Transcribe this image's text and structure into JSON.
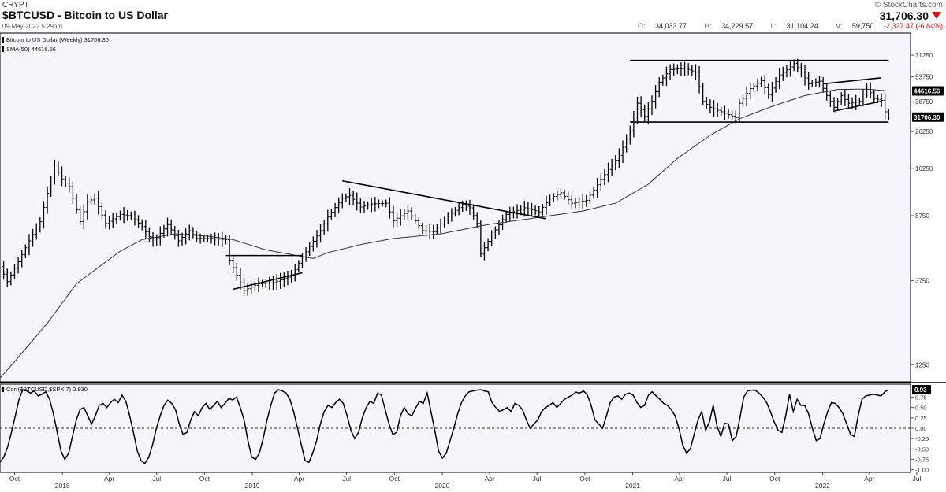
{
  "header": {
    "exchange": "CRYPT",
    "title": "$BTCUSD - Bitcoin to US Dollar",
    "date": "09-May-2022 5:29pm",
    "brand": "© StockCharts.com",
    "last": "31,706.30",
    "ohlc": {
      "open_label": "O:",
      "open": "34,033.77",
      "high_label": "H:",
      "high": "34,229.57",
      "low_label": "L:",
      "low": "31,104.24",
      "vol_label": "V:",
      "vol": "59,750",
      "change": "-2,327.47 (-6.84%)"
    }
  },
  "colors": {
    "background": "#f4f6fc",
    "price": "#000000",
    "change_down": "#dd1111"
  },
  "chart_data": [
    {
      "type": "ohlc",
      "title": "Bitcoin to US Dollar (Weekly) 31706.30",
      "sma_label": "SMA(50) 44616.56",
      "scale": "log",
      "y_ticks": [
        1250,
        3750,
        8750,
        16250,
        26250,
        38750,
        53750,
        71250
      ],
      "y_tick_labels": [
        "1250",
        "3750",
        "8750",
        "16250",
        "26250",
        "38750",
        "53750",
        "71250"
      ],
      "last_price_label": "31706.30",
      "sma_value_label": "44616.56",
      "x_ticks": [
        "2017-10-01",
        "2018-01-01",
        "2018-04-01",
        "2018-07-01",
        "2018-10-01",
        "2019-01-01",
        "2019-04-01",
        "2019-07-01",
        "2019-10-01",
        "2020-01-01",
        "2020-04-01",
        "2020-07-01",
        "2020-10-01",
        "2021-01-01",
        "2021-04-01",
        "2021-07-01",
        "2021-10-01",
        "2022-01-01",
        "2022-04-01",
        "2022-07-01"
      ],
      "x_tick_labels": [
        "Oct",
        "2018",
        "Apr",
        "Jul",
        "Oct",
        "2019",
        "Apr",
        "Jul",
        "Oct",
        "2020",
        "Apr",
        "Jul",
        "Oct",
        "2021",
        "Apr",
        "Jul",
        "Oct",
        "2022",
        "Apr",
        "Jul"
      ],
      "year_labels": [
        "2018",
        "2019",
        "2020",
        "2021",
        "2022"
      ],
      "price_anchors": [
        [
          "2017-09-03",
          4500
        ],
        [
          "2017-09-17",
          3700
        ],
        [
          "2017-10-08",
          4800
        ],
        [
          "2017-10-29",
          6300
        ],
        [
          "2017-11-19",
          8100
        ],
        [
          "2017-12-17",
          17000
        ],
        [
          "2017-12-31",
          14000
        ],
        [
          "2018-01-14",
          12800
        ],
        [
          "2018-02-04",
          8100
        ],
        [
          "2018-02-18",
          10500
        ],
        [
          "2018-03-04",
          11000
        ],
        [
          "2018-03-25",
          7900
        ],
        [
          "2018-04-22",
          8900
        ],
        [
          "2018-05-13",
          8700
        ],
        [
          "2018-06-03",
          7600
        ],
        [
          "2018-06-24",
          6200
        ],
        [
          "2018-07-22",
          7800
        ],
        [
          "2018-08-12",
          6300
        ],
        [
          "2018-09-02",
          7200
        ],
        [
          "2018-09-16",
          6500
        ],
        [
          "2018-10-14",
          6500
        ],
        [
          "2018-11-11",
          6400
        ],
        [
          "2018-11-18",
          4900
        ],
        [
          "2018-12-16",
          3300
        ],
        [
          "2019-01-13",
          3600
        ],
        [
          "2019-02-10",
          3650
        ],
        [
          "2019-03-17",
          4000
        ],
        [
          "2019-04-07",
          5100
        ],
        [
          "2019-05-12",
          7200
        ],
        [
          "2019-05-26",
          8600
        ],
        [
          "2019-06-23",
          11000
        ],
        [
          "2019-07-07",
          11400
        ],
        [
          "2019-07-28",
          9800
        ],
        [
          "2019-08-18",
          10200
        ],
        [
          "2019-09-15",
          10300
        ],
        [
          "2019-09-29",
          8200
        ],
        [
          "2019-10-27",
          9300
        ],
        [
          "2019-11-24",
          7200
        ],
        [
          "2019-12-15",
          7100
        ],
        [
          "2020-01-12",
          8700
        ],
        [
          "2020-02-09",
          10100
        ],
        [
          "2020-02-23",
          9700
        ],
        [
          "2020-03-08",
          7900
        ],
        [
          "2020-03-15",
          5300
        ],
        [
          "2020-04-05",
          6800
        ],
        [
          "2020-05-03",
          8900
        ],
        [
          "2020-06-07",
          9700
        ],
        [
          "2020-07-05",
          9200
        ],
        [
          "2020-07-26",
          11000
        ],
        [
          "2020-08-16",
          11800
        ],
        [
          "2020-09-06",
          10300
        ],
        [
          "2020-10-04",
          10700
        ],
        [
          "2020-10-25",
          13100
        ],
        [
          "2020-11-15",
          16000
        ],
        [
          "2020-12-06",
          19200
        ],
        [
          "2020-12-27",
          26500
        ],
        [
          "2021-01-10",
          38000
        ],
        [
          "2021-01-24",
          32000
        ],
        [
          "2021-02-07",
          39000
        ],
        [
          "2021-02-21",
          50000
        ],
        [
          "2021-03-14",
          59000
        ],
        [
          "2021-04-11",
          60000
        ],
        [
          "2021-05-02",
          57000
        ],
        [
          "2021-05-16",
          39000
        ],
        [
          "2021-05-30",
          36000
        ],
        [
          "2021-06-20",
          34000
        ],
        [
          "2021-07-18",
          31500
        ],
        [
          "2021-07-25",
          38000
        ],
        [
          "2021-08-15",
          46000
        ],
        [
          "2021-09-05",
          51000
        ],
        [
          "2021-09-19",
          42500
        ],
        [
          "2021-10-10",
          55000
        ],
        [
          "2021-10-31",
          61000
        ],
        [
          "2021-11-07",
          64000
        ],
        [
          "2021-11-21",
          57000
        ],
        [
          "2021-12-05",
          49000
        ],
        [
          "2021-12-26",
          50700
        ],
        [
          "2022-01-09",
          42000
        ],
        [
          "2022-01-23",
          36000
        ],
        [
          "2022-02-06",
          42000
        ],
        [
          "2022-02-20",
          38000
        ],
        [
          "2022-03-13",
          39000
        ],
        [
          "2022-03-27",
          47000
        ],
        [
          "2022-04-10",
          40400
        ],
        [
          "2022-04-24",
          39500
        ],
        [
          "2022-05-01",
          34000
        ],
        [
          "2022-05-08",
          31706
        ]
      ],
      "sma_anchors": [
        [
          "2017-09-03",
          1050
        ],
        [
          "2017-10-01",
          1300
        ],
        [
          "2017-12-03",
          2150
        ],
        [
          "2018-01-28",
          3600
        ],
        [
          "2018-04-22",
          5500
        ],
        [
          "2018-06-03",
          6400
        ],
        [
          "2018-08-05",
          6900
        ],
        [
          "2018-10-07",
          6700
        ],
        [
          "2018-11-25",
          6400
        ],
        [
          "2019-01-27",
          5600
        ],
        [
          "2019-04-28",
          5000
        ],
        [
          "2019-05-26",
          5400
        ],
        [
          "2019-07-28",
          6000
        ],
        [
          "2019-09-29",
          6500
        ],
        [
          "2019-12-29",
          6900
        ],
        [
          "2020-03-29",
          7800
        ],
        [
          "2020-06-28",
          8500
        ],
        [
          "2020-09-27",
          9300
        ],
        [
          "2020-11-29",
          10300
        ],
        [
          "2021-01-31",
          13200
        ],
        [
          "2021-03-28",
          18500
        ],
        [
          "2021-05-30",
          25000
        ],
        [
          "2021-07-25",
          31000
        ],
        [
          "2021-09-26",
          36500
        ],
        [
          "2021-11-28",
          42000
        ],
        [
          "2022-01-30",
          45500
        ],
        [
          "2022-03-27",
          45700
        ],
        [
          "2022-05-08",
          44600
        ]
      ],
      "trendlines": [
        [
          [
            "2018-11-11",
            5200
          ],
          [
            "2019-04-07",
            5200
          ]
        ],
        [
          [
            "2018-11-25",
            3350
          ],
          [
            "2019-04-07",
            4150
          ]
        ],
        [
          [
            "2019-06-23",
            13800
          ],
          [
            "2020-07-19",
            8400
          ]
        ],
        [
          [
            "2020-12-27",
            66500
          ],
          [
            "2022-05-08",
            66500
          ]
        ],
        [
          [
            "2020-12-27",
            29700
          ],
          [
            "2022-05-08",
            29700
          ]
        ],
        [
          [
            "2022-01-02",
            49000
          ],
          [
            "2022-04-24",
            53000
          ]
        ],
        [
          [
            "2022-01-23",
            34300
          ],
          [
            "2022-04-24",
            39000
          ]
        ]
      ]
    },
    {
      "type": "line",
      "title": "Corr($BTCUSD,$SPX,7) 0.930",
      "last_value_label": "0.93",
      "ylim": [
        -1.0,
        1.0
      ],
      "y_ticks": [
        -1.0,
        -0.75,
        -0.5,
        -0.25,
        0.0,
        0.25,
        0.5,
        0.75
      ],
      "y_tick_labels": [
        "-1.00",
        "-0.75",
        "-0.50",
        "-0.25",
        "0.00",
        "0.25",
        "0.50",
        "0.75"
      ],
      "zero_line": 0.0,
      "values": [
        -0.82,
        -0.7,
        -0.45,
        -0.1,
        0.3,
        0.7,
        0.93,
        0.9,
        0.85,
        0.9,
        0.78,
        0.82,
        0.88,
        0.7,
        0.35,
        -0.1,
        -0.55,
        -0.75,
        -0.6,
        -0.2,
        0.2,
        0.45,
        0.5,
        0.3,
        0.1,
        0.3,
        0.55,
        0.6,
        0.5,
        0.62,
        0.7,
        0.62,
        0.8,
        0.65,
        0.3,
        -0.1,
        -0.55,
        -0.78,
        -0.85,
        -0.7,
        -0.4,
        0.0,
        0.3,
        0.55,
        0.68,
        0.6,
        0.45,
        0.1,
        -0.15,
        -0.1,
        0.2,
        0.4,
        0.3,
        0.5,
        0.6,
        0.45,
        0.55,
        0.65,
        0.5,
        0.6,
        0.72,
        0.68,
        0.75,
        0.5,
        0.2,
        -0.3,
        -0.7,
        -0.75,
        -0.6,
        -0.25,
        0.2,
        0.55,
        0.85,
        0.93,
        0.9,
        0.85,
        0.7,
        0.4,
        0.0,
        -0.4,
        -0.78,
        -0.82,
        -0.6,
        -0.3,
        0.1,
        0.4,
        0.55,
        0.5,
        0.62,
        0.7,
        0.6,
        0.3,
        -0.05,
        -0.25,
        -0.1,
        0.25,
        0.5,
        0.65,
        0.6,
        0.85,
        0.8,
        0.45,
        0.1,
        -0.15,
        -0.1,
        0.3,
        0.5,
        0.35,
        0.3,
        0.5,
        0.65,
        0.6,
        0.85,
        0.4,
        -0.05,
        -0.55,
        -0.72,
        -0.6,
        -0.3,
        0.0,
        0.35,
        0.62,
        0.78,
        0.88,
        0.9,
        0.92,
        0.93,
        0.9,
        0.88,
        0.62,
        0.5,
        0.4,
        0.45,
        0.5,
        0.4,
        0.6,
        0.55,
        0.45,
        0.2,
        0.0,
        0.1,
        0.2,
        0.4,
        0.5,
        0.55,
        0.62,
        0.5,
        0.6,
        0.7,
        0.75,
        0.8,
        0.87,
        0.85,
        0.9,
        0.8,
        0.55,
        0.2,
        0.1,
        0.0,
        0.3,
        0.62,
        0.75,
        0.78,
        0.7,
        0.82,
        0.85,
        0.8,
        0.62,
        0.5,
        0.55,
        0.8,
        0.88,
        0.78,
        0.7,
        0.6,
        0.55,
        0.45,
        0.3,
        0.0,
        -0.4,
        -0.6,
        -0.5,
        -0.15,
        0.2,
        0.4,
        -0.05,
        0.15,
        0.55,
        0.05,
        -0.2,
        0.12,
        0.1,
        -0.3,
        -0.2,
        0.25,
        0.75,
        0.9,
        0.92,
        0.92,
        0.85,
        0.75,
        0.62,
        0.4,
        0.15,
        -0.05,
        -0.1,
        0.3,
        0.82,
        0.4,
        0.7,
        0.55,
        0.55,
        0.35,
        0.0,
        -0.3,
        -0.25,
        0.1,
        0.4,
        0.62,
        0.6,
        0.5,
        0.35,
        0.1,
        -0.15,
        -0.2,
        0.3,
        0.7,
        0.78,
        0.8,
        0.82,
        0.8,
        0.78,
        0.88,
        0.93
      ],
      "start_date": "2017-09-03",
      "end_date": "2022-05-08"
    }
  ]
}
